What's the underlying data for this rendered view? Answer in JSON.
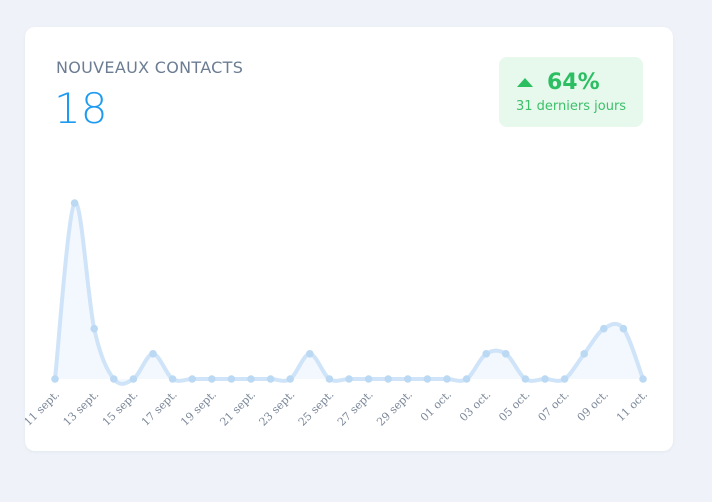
{
  "widget": {
    "title": "NOUVEAUX CONTACTS",
    "value": "18",
    "trend": {
      "direction": "up",
      "percent": "64%",
      "caption": "31 derniers jours",
      "color": "#2bbf62"
    }
  },
  "chart_data": {
    "type": "area",
    "x": [
      "11 sept.",
      "12 sept.",
      "13 sept.",
      "14 sept.",
      "15 sept.",
      "16 sept.",
      "17 sept.",
      "18 sept.",
      "19 sept.",
      "20 sept.",
      "21 sept.",
      "22 sept.",
      "23 sept.",
      "24 sept.",
      "25 sept.",
      "26 sept.",
      "27 sept.",
      "28 sept.",
      "29 sept.",
      "30 sept.",
      "01 oct.",
      "02 oct.",
      "03 oct.",
      "04 oct.",
      "05 oct.",
      "06 oct.",
      "07 oct.",
      "08 oct.",
      "09 oct.",
      "10 oct.",
      "11 oct."
    ],
    "tick_labels": [
      "11 sept.",
      "13 sept.",
      "15 sept.",
      "17 sept.",
      "19 sept.",
      "21 sept.",
      "23 sept.",
      "25 sept.",
      "27 sept.",
      "29 sept.",
      "01 oct.",
      "03 oct.",
      "05 oct.",
      "07 oct.",
      "09 oct.",
      "11 oct."
    ],
    "values": [
      0,
      7,
      2,
      0,
      0,
      1,
      0,
      0,
      0,
      0,
      0,
      0,
      0,
      1,
      0,
      0,
      0,
      0,
      0,
      0,
      0,
      0,
      1,
      1,
      0,
      0,
      0,
      1,
      2,
      2,
      0
    ],
    "ylim": [
      0,
      7
    ],
    "line_color": "#cfe4f8",
    "fill_color": "#f3f8fe",
    "point_color": "#bcd9f4"
  }
}
